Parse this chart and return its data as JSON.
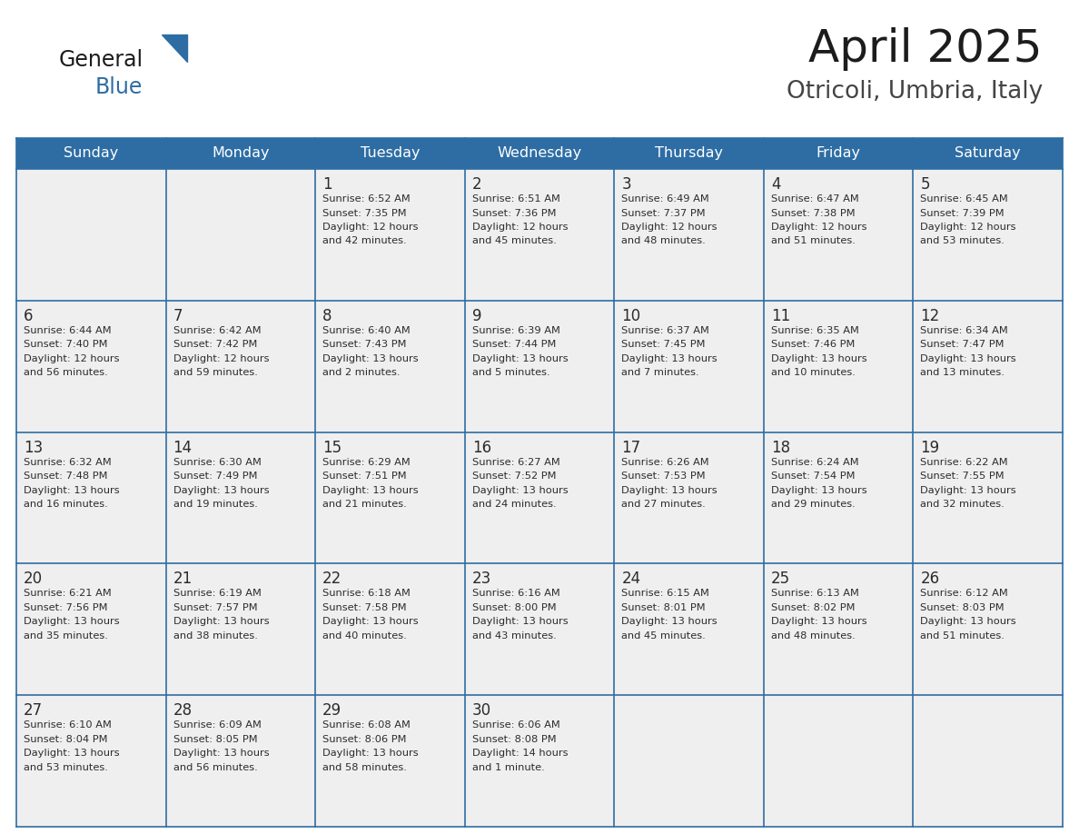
{
  "title": "April 2025",
  "subtitle": "Otricoli, Umbria, Italy",
  "header_color": "#2E6DA4",
  "header_text_color": "#FFFFFF",
  "cell_bg_color": "#EFEFEF",
  "border_color": "#2E6DA4",
  "day_names": [
    "Sunday",
    "Monday",
    "Tuesday",
    "Wednesday",
    "Thursday",
    "Friday",
    "Saturday"
  ],
  "days": [
    {
      "day": 1,
      "col": 2,
      "row": 0,
      "sunrise": "6:52 AM",
      "sunset": "7:35 PM",
      "daylight_l1": "12 hours",
      "daylight_l2": "and 42 minutes."
    },
    {
      "day": 2,
      "col": 3,
      "row": 0,
      "sunrise": "6:51 AM",
      "sunset": "7:36 PM",
      "daylight_l1": "12 hours",
      "daylight_l2": "and 45 minutes."
    },
    {
      "day": 3,
      "col": 4,
      "row": 0,
      "sunrise": "6:49 AM",
      "sunset": "7:37 PM",
      "daylight_l1": "12 hours",
      "daylight_l2": "and 48 minutes."
    },
    {
      "day": 4,
      "col": 5,
      "row": 0,
      "sunrise": "6:47 AM",
      "sunset": "7:38 PM",
      "daylight_l1": "12 hours",
      "daylight_l2": "and 51 minutes."
    },
    {
      "day": 5,
      "col": 6,
      "row": 0,
      "sunrise": "6:45 AM",
      "sunset": "7:39 PM",
      "daylight_l1": "12 hours",
      "daylight_l2": "and 53 minutes."
    },
    {
      "day": 6,
      "col": 0,
      "row": 1,
      "sunrise": "6:44 AM",
      "sunset": "7:40 PM",
      "daylight_l1": "12 hours",
      "daylight_l2": "and 56 minutes."
    },
    {
      "day": 7,
      "col": 1,
      "row": 1,
      "sunrise": "6:42 AM",
      "sunset": "7:42 PM",
      "daylight_l1": "12 hours",
      "daylight_l2": "and 59 minutes."
    },
    {
      "day": 8,
      "col": 2,
      "row": 1,
      "sunrise": "6:40 AM",
      "sunset": "7:43 PM",
      "daylight_l1": "13 hours",
      "daylight_l2": "and 2 minutes."
    },
    {
      "day": 9,
      "col": 3,
      "row": 1,
      "sunrise": "6:39 AM",
      "sunset": "7:44 PM",
      "daylight_l1": "13 hours",
      "daylight_l2": "and 5 minutes."
    },
    {
      "day": 10,
      "col": 4,
      "row": 1,
      "sunrise": "6:37 AM",
      "sunset": "7:45 PM",
      "daylight_l1": "13 hours",
      "daylight_l2": "and 7 minutes."
    },
    {
      "day": 11,
      "col": 5,
      "row": 1,
      "sunrise": "6:35 AM",
      "sunset": "7:46 PM",
      "daylight_l1": "13 hours",
      "daylight_l2": "and 10 minutes."
    },
    {
      "day": 12,
      "col": 6,
      "row": 1,
      "sunrise": "6:34 AM",
      "sunset": "7:47 PM",
      "daylight_l1": "13 hours",
      "daylight_l2": "and 13 minutes."
    },
    {
      "day": 13,
      "col": 0,
      "row": 2,
      "sunrise": "6:32 AM",
      "sunset": "7:48 PM",
      "daylight_l1": "13 hours",
      "daylight_l2": "and 16 minutes."
    },
    {
      "day": 14,
      "col": 1,
      "row": 2,
      "sunrise": "6:30 AM",
      "sunset": "7:49 PM",
      "daylight_l1": "13 hours",
      "daylight_l2": "and 19 minutes."
    },
    {
      "day": 15,
      "col": 2,
      "row": 2,
      "sunrise": "6:29 AM",
      "sunset": "7:51 PM",
      "daylight_l1": "13 hours",
      "daylight_l2": "and 21 minutes."
    },
    {
      "day": 16,
      "col": 3,
      "row": 2,
      "sunrise": "6:27 AM",
      "sunset": "7:52 PM",
      "daylight_l1": "13 hours",
      "daylight_l2": "and 24 minutes."
    },
    {
      "day": 17,
      "col": 4,
      "row": 2,
      "sunrise": "6:26 AM",
      "sunset": "7:53 PM",
      "daylight_l1": "13 hours",
      "daylight_l2": "and 27 minutes."
    },
    {
      "day": 18,
      "col": 5,
      "row": 2,
      "sunrise": "6:24 AM",
      "sunset": "7:54 PM",
      "daylight_l1": "13 hours",
      "daylight_l2": "and 29 minutes."
    },
    {
      "day": 19,
      "col": 6,
      "row": 2,
      "sunrise": "6:22 AM",
      "sunset": "7:55 PM",
      "daylight_l1": "13 hours",
      "daylight_l2": "and 32 minutes."
    },
    {
      "day": 20,
      "col": 0,
      "row": 3,
      "sunrise": "6:21 AM",
      "sunset": "7:56 PM",
      "daylight_l1": "13 hours",
      "daylight_l2": "and 35 minutes."
    },
    {
      "day": 21,
      "col": 1,
      "row": 3,
      "sunrise": "6:19 AM",
      "sunset": "7:57 PM",
      "daylight_l1": "13 hours",
      "daylight_l2": "and 38 minutes."
    },
    {
      "day": 22,
      "col": 2,
      "row": 3,
      "sunrise": "6:18 AM",
      "sunset": "7:58 PM",
      "daylight_l1": "13 hours",
      "daylight_l2": "and 40 minutes."
    },
    {
      "day": 23,
      "col": 3,
      "row": 3,
      "sunrise": "6:16 AM",
      "sunset": "8:00 PM",
      "daylight_l1": "13 hours",
      "daylight_l2": "and 43 minutes."
    },
    {
      "day": 24,
      "col": 4,
      "row": 3,
      "sunrise": "6:15 AM",
      "sunset": "8:01 PM",
      "daylight_l1": "13 hours",
      "daylight_l2": "and 45 minutes."
    },
    {
      "day": 25,
      "col": 5,
      "row": 3,
      "sunrise": "6:13 AM",
      "sunset": "8:02 PM",
      "daylight_l1": "13 hours",
      "daylight_l2": "and 48 minutes."
    },
    {
      "day": 26,
      "col": 6,
      "row": 3,
      "sunrise": "6:12 AM",
      "sunset": "8:03 PM",
      "daylight_l1": "13 hours",
      "daylight_l2": "and 51 minutes."
    },
    {
      "day": 27,
      "col": 0,
      "row": 4,
      "sunrise": "6:10 AM",
      "sunset": "8:04 PM",
      "daylight_l1": "13 hours",
      "daylight_l2": "and 53 minutes."
    },
    {
      "day": 28,
      "col": 1,
      "row": 4,
      "sunrise": "6:09 AM",
      "sunset": "8:05 PM",
      "daylight_l1": "13 hours",
      "daylight_l2": "and 56 minutes."
    },
    {
      "day": 29,
      "col": 2,
      "row": 4,
      "sunrise": "6:08 AM",
      "sunset": "8:06 PM",
      "daylight_l1": "13 hours",
      "daylight_l2": "and 58 minutes."
    },
    {
      "day": 30,
      "col": 3,
      "row": 4,
      "sunrise": "6:06 AM",
      "sunset": "8:08 PM",
      "daylight_l1": "14 hours",
      "daylight_l2": "and 1 minute."
    }
  ]
}
